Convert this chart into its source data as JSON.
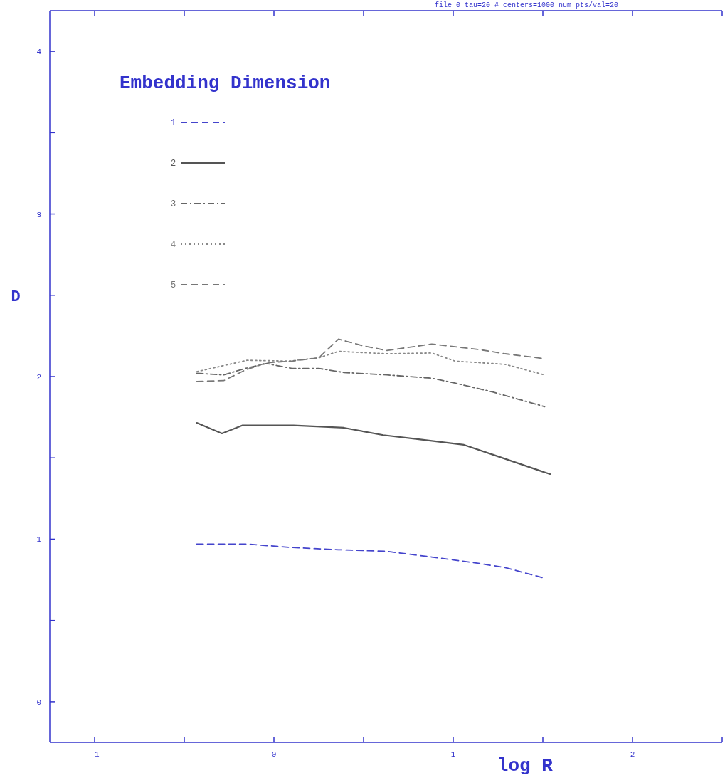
{
  "chart_data": {
    "type": "line",
    "xlabel": "log R",
    "ylabel": "D",
    "legend_title": "Embedding Dimension",
    "legend": "top left",
    "grid": false,
    "marker": "none",
    "annotations": [
      "file 0   tau=20   # centers=1000   num pts/val=20"
    ],
    "xlim": [
      -1.25,
      2.5
    ],
    "ylim": [
      -0.25,
      4.25
    ],
    "xticks": [
      -1,
      {
        "value": -0.5,
        "label": null
      },
      0,
      {
        "value": 0.5,
        "label": null
      },
      1,
      {
        "value": 1.5,
        "label": null
      },
      2,
      {
        "value": 2.5,
        "label": null
      }
    ],
    "yticks": [
      0,
      {
        "value": 0.5,
        "label": null
      },
      1,
      {
        "value": 1.5,
        "label": null
      },
      2,
      {
        "value": 2.5,
        "label": null
      },
      3,
      {
        "value": 3.5,
        "label": null
      },
      4
    ],
    "series": [
      {
        "name": "1",
        "color": "#4444cc",
        "line_style": "dashed",
        "x": [
          -0.43,
          -0.15,
          0.085,
          0.36,
          0.63,
          0.88,
          1.15,
          1.29,
          1.51
        ],
        "values": [
          0.97,
          0.97,
          0.95,
          0.935,
          0.925,
          0.89,
          0.85,
          0.825,
          0.76
        ]
      },
      {
        "name": "2",
        "color": "#555555",
        "line_style": "solid",
        "x": [
          -0.43,
          -0.29,
          -0.175,
          0.11,
          0.39,
          0.61,
          0.8,
          1.06,
          1.22,
          1.54
        ],
        "values": [
          1.715,
          1.65,
          1.7,
          1.7,
          1.685,
          1.64,
          1.615,
          1.58,
          1.52,
          1.4
        ]
      },
      {
        "name": "3",
        "color": "#666666",
        "line_style": "dashdot",
        "x": [
          -0.43,
          -0.28,
          -0.16,
          -0.04,
          0.1,
          0.25,
          0.39,
          0.63,
          0.88,
          1.01,
          1.22,
          1.51
        ],
        "values": [
          2.02,
          2.01,
          2.05,
          2.08,
          2.05,
          2.05,
          2.025,
          2.01,
          1.99,
          1.96,
          1.905,
          1.815
        ]
      },
      {
        "name": "4",
        "color": "#888888",
        "line_style": "dotted",
        "x": [
          -0.43,
          -0.15,
          0.085,
          0.25,
          0.36,
          0.63,
          0.88,
          1.01,
          1.29,
          1.51
        ],
        "values": [
          2.03,
          2.1,
          2.095,
          2.115,
          2.155,
          2.14,
          2.145,
          2.095,
          2.075,
          2.01
        ]
      },
      {
        "name": "5",
        "color": "#777777",
        "line_style": "dashed",
        "x": [
          -0.43,
          -0.28,
          -0.16,
          -0.04,
          0.1,
          0.25,
          0.36,
          0.495,
          0.63,
          0.88,
          1.15,
          1.29,
          1.51
        ],
        "values": [
          1.97,
          1.975,
          2.04,
          2.085,
          2.095,
          2.115,
          2.23,
          2.19,
          2.16,
          2.2,
          2.165,
          2.14,
          2.11
        ]
      }
    ]
  }
}
